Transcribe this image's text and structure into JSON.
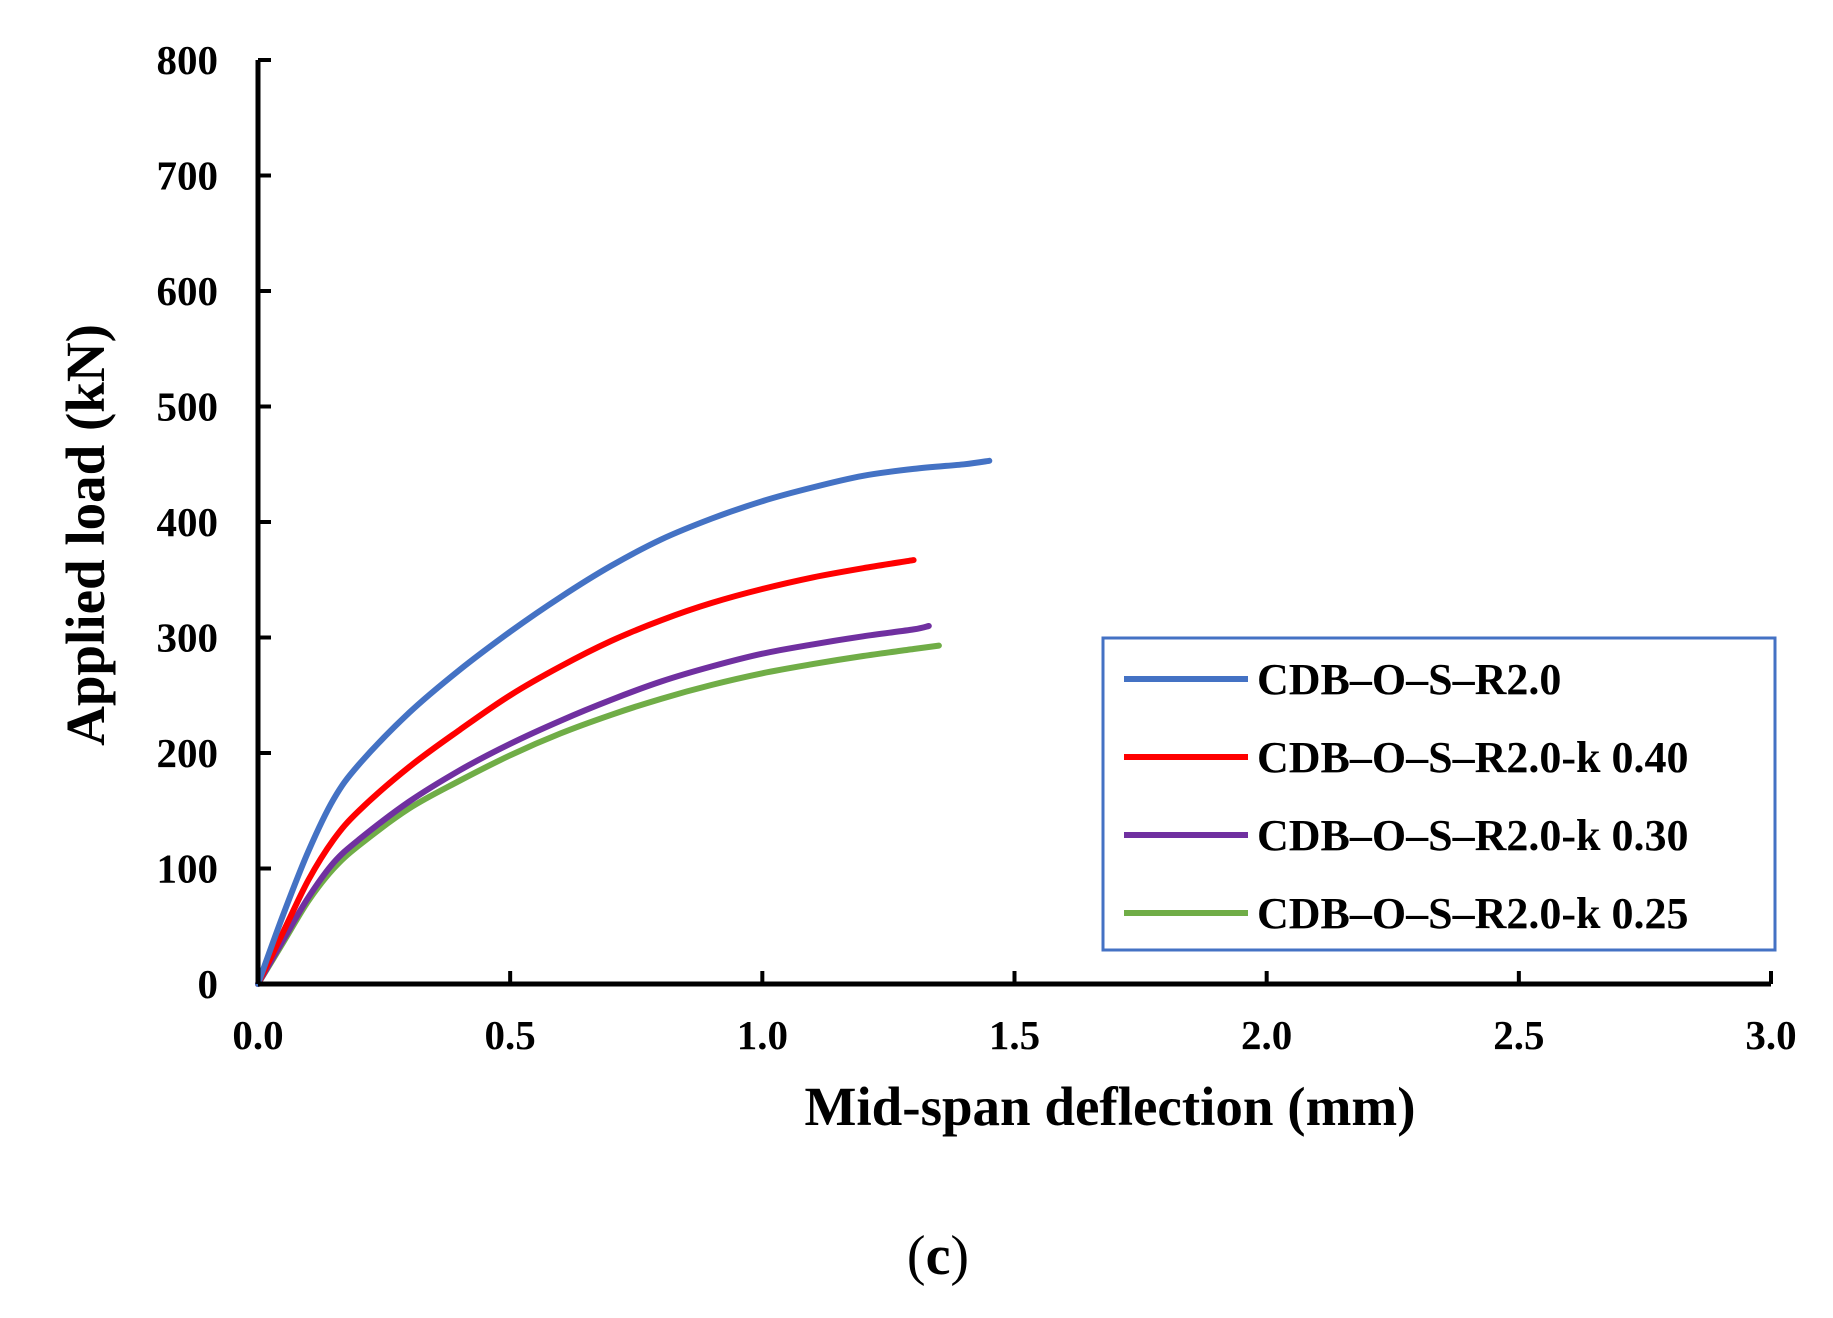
{
  "chart_data": {
    "type": "line",
    "title": "",
    "xlabel": "Mid-span deflection (mm)",
    "ylabel": "Applied load (kN)",
    "xlim": [
      0,
      3
    ],
    "ylim": [
      0,
      800
    ],
    "xticks": [
      0,
      0.5,
      1,
      1.5,
      2,
      2.5,
      3
    ],
    "xtick_labels": [
      "0.0",
      "0.5",
      "1.0",
      "1.5",
      "2.0",
      "2.5",
      "3.0"
    ],
    "yticks": [
      0,
      100,
      200,
      300,
      400,
      500,
      600,
      700,
      800
    ],
    "ytick_labels": [
      "0",
      "100",
      "200",
      "300",
      "400",
      "500",
      "600",
      "700",
      "800"
    ],
    "grid": false,
    "legend_position": "right",
    "series": [
      {
        "name": "CDB–O–S–R2.0",
        "color": "#4472C4",
        "x": [
          0,
          0.05,
          0.1,
          0.15,
          0.2,
          0.3,
          0.4,
          0.5,
          0.6,
          0.7,
          0.8,
          0.9,
          1.0,
          1.1,
          1.2,
          1.3,
          1.4,
          1.45
        ],
        "y": [
          0,
          60,
          115,
          160,
          190,
          235,
          272,
          305,
          335,
          362,
          385,
          403,
          418,
          430,
          440,
          446,
          450,
          453
        ]
      },
      {
        "name": "CDB–O–S–R2.0-k 0.40",
        "color": "#FF0000",
        "x": [
          0,
          0.05,
          0.1,
          0.15,
          0.2,
          0.3,
          0.4,
          0.5,
          0.6,
          0.7,
          0.8,
          0.9,
          1.0,
          1.1,
          1.2,
          1.3
        ],
        "y": [
          0,
          45,
          90,
          125,
          150,
          188,
          220,
          250,
          275,
          297,
          315,
          330,
          342,
          352,
          360,
          367
        ]
      },
      {
        "name": "CDB–O–S–R2.0-k 0.30",
        "color": "#7030A0",
        "x": [
          0,
          0.05,
          0.1,
          0.15,
          0.2,
          0.3,
          0.4,
          0.5,
          0.6,
          0.7,
          0.8,
          0.9,
          1.0,
          1.1,
          1.2,
          1.3,
          1.33
        ],
        "y": [
          0,
          38,
          75,
          105,
          125,
          158,
          185,
          208,
          228,
          246,
          262,
          275,
          286,
          294,
          301,
          307,
          310
        ]
      },
      {
        "name": "CDB–O–S–R2.0-k 0.25",
        "color": "#70AD47",
        "x": [
          0,
          0.05,
          0.1,
          0.15,
          0.2,
          0.3,
          0.4,
          0.5,
          0.6,
          0.7,
          0.8,
          0.9,
          1.0,
          1.1,
          1.2,
          1.3,
          1.35
        ],
        "y": [
          0,
          36,
          72,
          100,
          120,
          152,
          176,
          198,
          217,
          233,
          247,
          259,
          269,
          277,
          284,
          290,
          293
        ]
      }
    ]
  },
  "caption": {
    "open": "(",
    "letter": "c",
    "close": ")"
  }
}
